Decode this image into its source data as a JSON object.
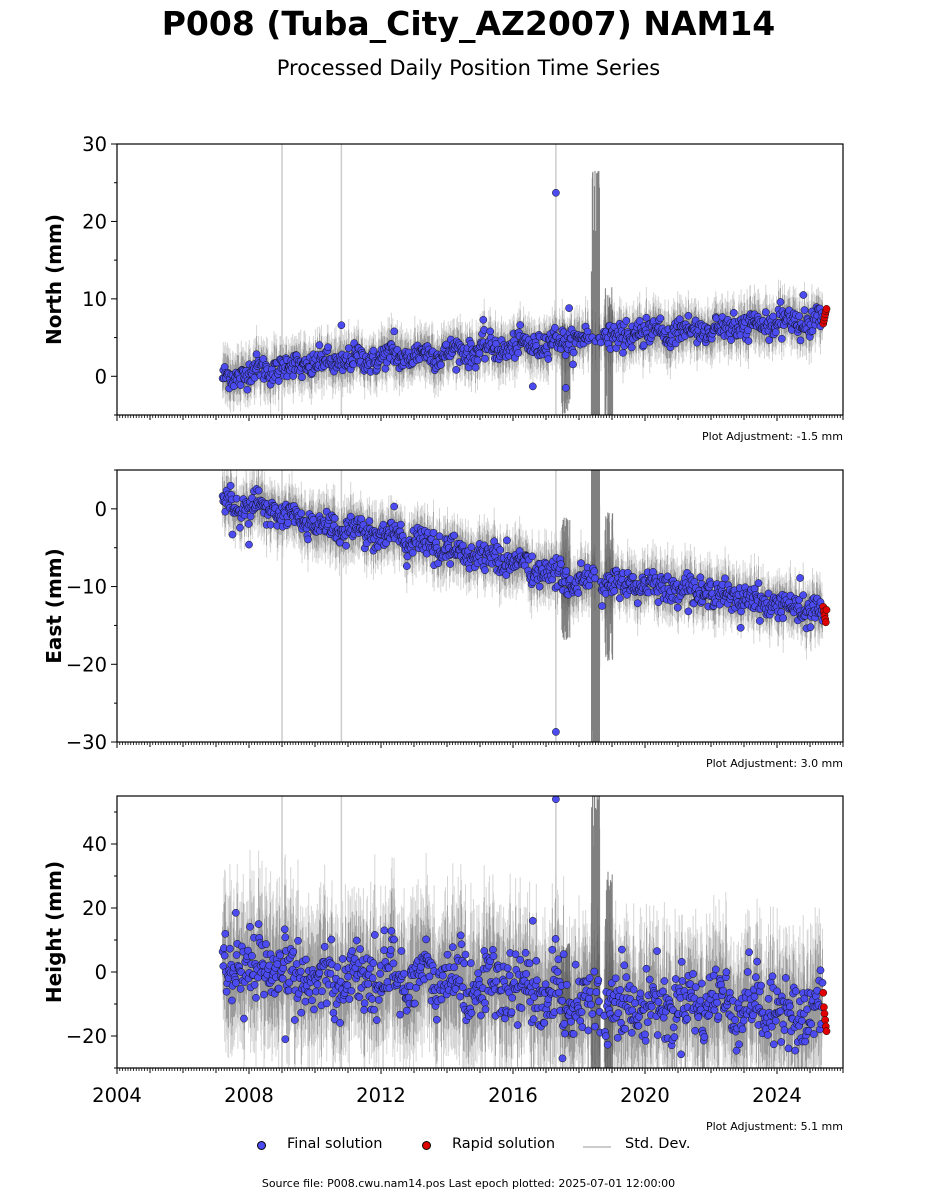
{
  "title": "P008 (Tuba_City_AZ2007) NAM14",
  "subtitle": "Processed Daily Position Time Series",
  "footer": "Source file: P008.cwu.nam14.pos  Last epoch plotted: 2025-07-01 12:00:00",
  "legend": {
    "final": "Final solution",
    "rapid": "Rapid solution",
    "stddev": "Std. Dev."
  },
  "colors": {
    "final": "#4b4bf0",
    "rapid": "#e00000",
    "stddev": "#cccccc",
    "errorbar": "#555555"
  },
  "chart_data": [
    {
      "type": "scatter",
      "ylabel": "North (mm)",
      "xlim": [
        2004,
        2026
      ],
      "ylim": [
        -5,
        30
      ],
      "yticks": [
        0,
        10,
        20,
        30
      ],
      "xticks": [
        2004,
        2008,
        2012,
        2016,
        2020,
        2024
      ],
      "adjustment": "Plot Adjustment: -1.5 mm",
      "vlines": [
        2009.0,
        2010.8,
        2017.3
      ],
      "trend": {
        "x": [
          2007.2,
          2008.0,
          2010.0,
          2012.0,
          2014.0,
          2016.0,
          2018.0,
          2020.0,
          2022.0,
          2024.0,
          2025.5
        ],
        "y": [
          -0.5,
          0.6,
          1.6,
          2.4,
          3.0,
          3.8,
          4.8,
          5.5,
          6.0,
          6.8,
          7.3
        ]
      },
      "scatter_amp": 1.0,
      "outliers": [
        [
          2017.3,
          23.7
        ],
        [
          2016.6,
          -1.3
        ],
        [
          2017.6,
          -1.5
        ],
        [
          2017.7,
          8.8
        ],
        [
          2010.8,
          6.6
        ],
        [
          2012.4,
          5.8
        ],
        [
          2015.1,
          7.3
        ],
        [
          2024.8,
          10.5
        ]
      ],
      "rapid": [
        [
          2025.4,
          6.8
        ],
        [
          2025.42,
          7.2
        ],
        [
          2025.44,
          7.6
        ],
        [
          2025.46,
          8.0
        ],
        [
          2025.48,
          8.4
        ],
        [
          2025.5,
          8.7
        ]
      ],
      "noisy": [
        [
          2018.5,
          2.0,
          25
        ],
        [
          2018.9,
          1.5,
          10
        ],
        [
          2017.6,
          1.0,
          6
        ]
      ]
    },
    {
      "type": "scatter",
      "ylabel": "East (mm)",
      "xlim": [
        2004,
        2026
      ],
      "ylim": [
        -30,
        5
      ],
      "yticks": [
        -30,
        -20,
        -10,
        0
      ],
      "xticks": [
        2004,
        2008,
        2012,
        2016,
        2020,
        2024
      ],
      "adjustment": "Plot Adjustment: 3.0 mm",
      "vlines": [
        2009.0,
        2010.8,
        2017.3
      ],
      "trend": {
        "x": [
          2007.2,
          2008.0,
          2010.0,
          2012.0,
          2014.0,
          2016.0,
          2017.5,
          2019.0,
          2020.0,
          2022.0,
          2024.0,
          2025.5
        ],
        "y": [
          0.8,
          0.5,
          -2.0,
          -3.2,
          -5.2,
          -6.8,
          -9.0,
          -9.8,
          -9.6,
          -10.8,
          -12.3,
          -13.6
        ]
      },
      "scatter_amp": 1.1,
      "outliers": [
        [
          2017.3,
          -28.7
        ],
        [
          2008.0,
          -4.6
        ],
        [
          2007.5,
          -3.3
        ],
        [
          2012.4,
          0.3
        ],
        [
          2018.7,
          -12.5
        ],
        [
          2024.7,
          -8.9
        ],
        [
          2022.9,
          -15.3
        ]
      ],
      "rapid": [
        [
          2025.4,
          -12.6
        ],
        [
          2025.42,
          -13.2
        ],
        [
          2025.44,
          -13.7
        ],
        [
          2025.46,
          -14.2
        ],
        [
          2025.48,
          -14.6
        ],
        [
          2025.5,
          -13.0
        ]
      ],
      "noisy": [
        [
          2018.5,
          -10.0,
          28
        ],
        [
          2018.9,
          -10.0,
          10
        ],
        [
          2017.6,
          -9.0,
          8
        ]
      ]
    },
    {
      "type": "scatter",
      "ylabel": "Height (mm)",
      "xlabel": "",
      "xlim": [
        2004,
        2026
      ],
      "ylim": [
        -30,
        55
      ],
      "yticks": [
        -20,
        0,
        20,
        40
      ],
      "xticks": [
        2004,
        2008,
        2012,
        2016,
        2020,
        2024
      ],
      "adjustment": "Plot Adjustment: 5.1 mm",
      "vlines": [
        2009.0,
        2010.8,
        2017.3
      ],
      "trend": {
        "x": [
          2007.2,
          2010.0,
          2013.0,
          2016.0,
          2018.0,
          2020.0,
          2022.0,
          2024.0,
          2025.5
        ],
        "y": [
          0.0,
          -2.0,
          -1.5,
          -5.0,
          -9.0,
          -11.0,
          -9.0,
          -12.0,
          -14.0
        ]
      },
      "scatter_amp": 6.5,
      "outliers": [
        [
          2017.3,
          54.0
        ],
        [
          2007.6,
          18.5
        ],
        [
          2009.1,
          -21.0
        ],
        [
          2016.6,
          16.0
        ],
        [
          2017.5,
          -27.0
        ],
        [
          2019.3,
          7.0
        ],
        [
          2012.1,
          13.0
        ]
      ],
      "rapid": [
        [
          2025.4,
          -6.5
        ],
        [
          2025.42,
          -11.0
        ],
        [
          2025.44,
          -13.0
        ],
        [
          2025.46,
          -15.0
        ],
        [
          2025.48,
          -17.0
        ],
        [
          2025.5,
          -18.5
        ]
      ],
      "noisy": [
        [
          2018.5,
          -5.0,
          70
        ],
        [
          2018.9,
          -8.0,
          40
        ],
        [
          2017.6,
          -6.0,
          15
        ]
      ]
    }
  ]
}
